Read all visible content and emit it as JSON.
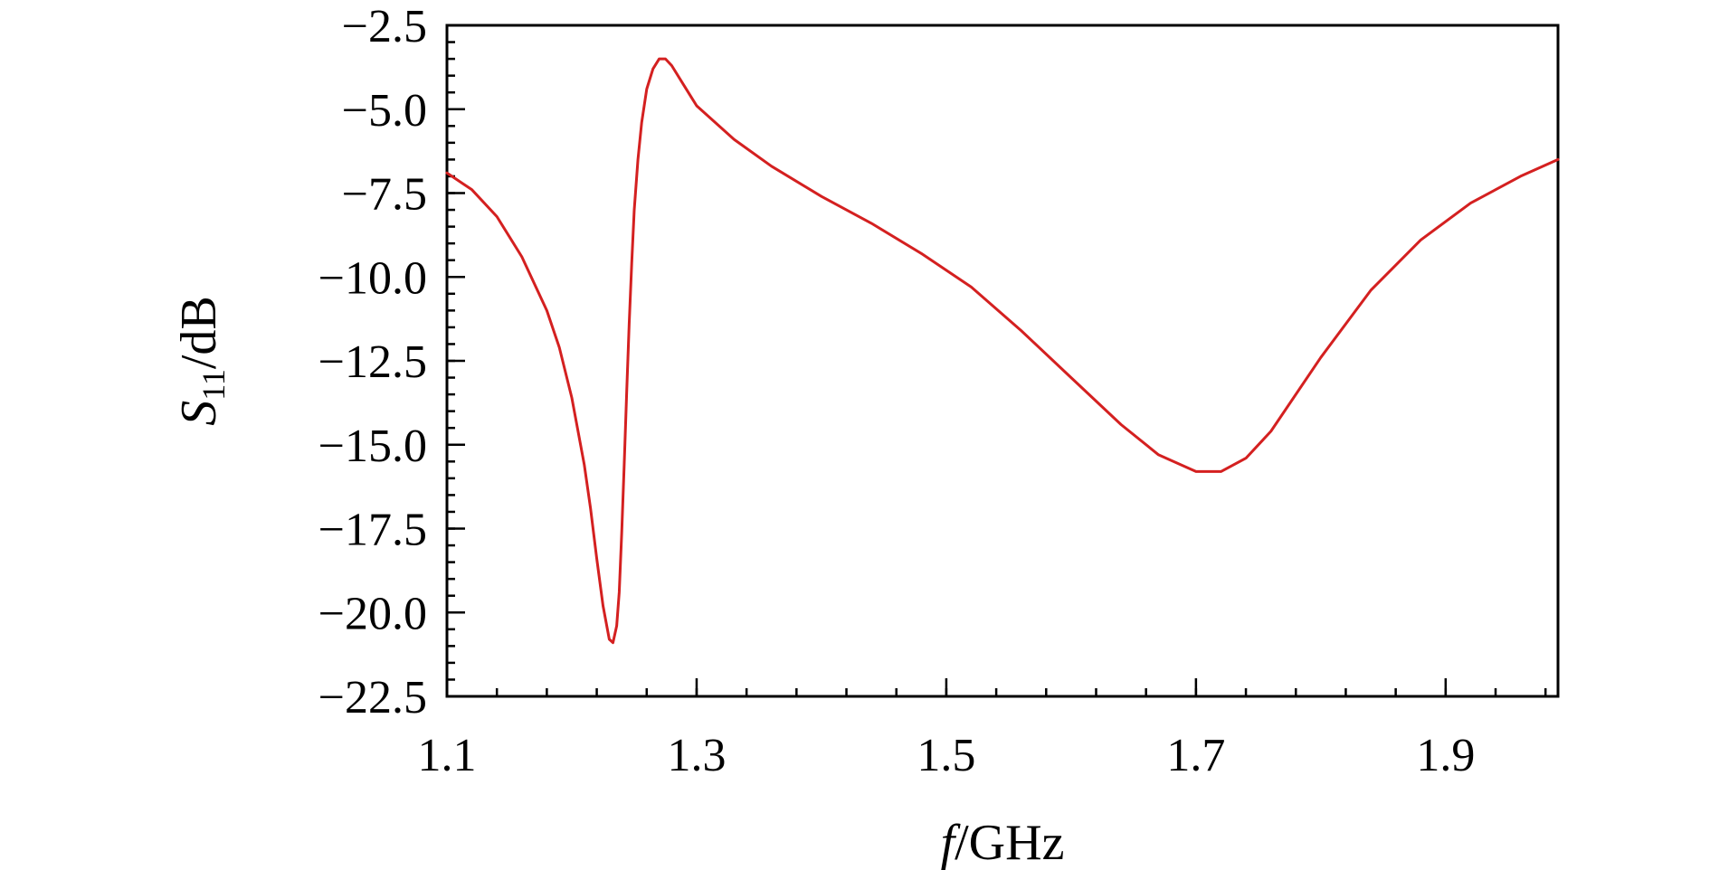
{
  "chart_data": {
    "type": "line",
    "xlabel": {
      "var": "f",
      "unit": "/GHz"
    },
    "ylabel": {
      "var": "S",
      "sub": "11",
      "unit": "/dB"
    },
    "xlim": [
      1.1,
      1.99
    ],
    "ylim": [
      -22.5,
      -2.5
    ],
    "xticks": [
      1.1,
      1.3,
      1.5,
      1.7,
      1.9
    ],
    "xtick_labels": [
      "1.1",
      "1.3",
      "1.5",
      "1.7",
      "1.9"
    ],
    "x_minor_step": 0.04,
    "yticks": [
      -22.5,
      -20.0,
      -17.5,
      -15.0,
      -12.5,
      -10.0,
      -7.5,
      -5.0,
      -2.5
    ],
    "ytick_labels": [
      "−22.5",
      "−20.0",
      "−17.5",
      "−15.0",
      "−12.5",
      "−10.0",
      "−7.5",
      "−5.0",
      "−2.5"
    ],
    "y_minor_step": 0.5,
    "grid": false,
    "series": [
      {
        "color": "#d42020",
        "x": [
          1.1,
          1.12,
          1.14,
          1.16,
          1.18,
          1.19,
          1.2,
          1.21,
          1.215,
          1.22,
          1.225,
          1.23,
          1.233,
          1.236,
          1.238,
          1.24,
          1.242,
          1.244,
          1.246,
          1.248,
          1.25,
          1.253,
          1.256,
          1.26,
          1.265,
          1.27,
          1.275,
          1.28,
          1.29,
          1.3,
          1.33,
          1.36,
          1.4,
          1.44,
          1.48,
          1.52,
          1.56,
          1.6,
          1.64,
          1.67,
          1.7,
          1.72,
          1.74,
          1.76,
          1.8,
          1.84,
          1.88,
          1.92,
          1.96,
          1.99
        ],
        "y": [
          -6.9,
          -7.4,
          -8.2,
          -9.4,
          -11.0,
          -12.1,
          -13.6,
          -15.6,
          -16.9,
          -18.4,
          -19.8,
          -20.8,
          -20.9,
          -20.4,
          -19.4,
          -17.6,
          -15.6,
          -13.4,
          -11.4,
          -9.6,
          -8.0,
          -6.5,
          -5.4,
          -4.4,
          -3.8,
          -3.5,
          -3.5,
          -3.7,
          -4.3,
          -4.9,
          -5.9,
          -6.7,
          -7.6,
          -8.4,
          -9.3,
          -10.3,
          -11.6,
          -13.0,
          -14.4,
          -15.3,
          -15.8,
          -15.8,
          -15.4,
          -14.6,
          -12.4,
          -10.4,
          -8.9,
          -7.8,
          -7.0,
          -6.5
        ]
      }
    ]
  }
}
